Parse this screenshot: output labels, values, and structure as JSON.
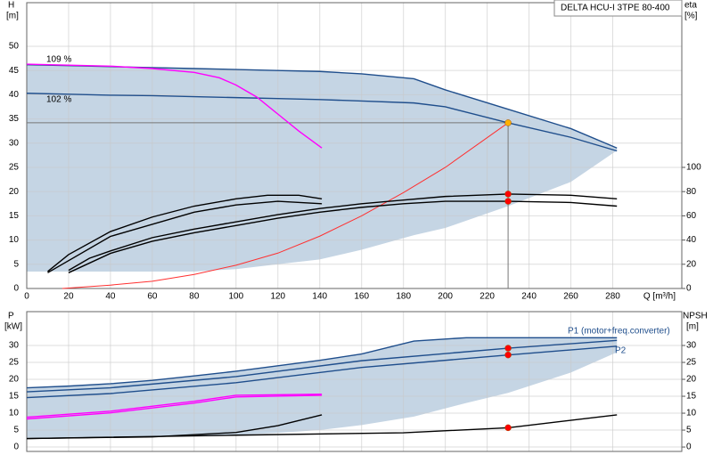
{
  "chart_data": [
    {
      "type": "line",
      "title": "DELTA HCU-I 3TPE 80-400",
      "xlabel": "Q [m³/h]",
      "ylabel": "H",
      "yunit": "[m]",
      "y2label": "eta",
      "y2unit": "[%]",
      "xlim": [
        0,
        313
      ],
      "xticks": [
        0,
        20,
        40,
        60,
        80,
        100,
        120,
        140,
        160,
        180,
        200,
        220,
        240,
        260,
        280
      ],
      "ylim": [
        0,
        59
      ],
      "yticks": [
        0,
        5,
        10,
        15,
        20,
        25,
        30,
        35,
        40,
        45,
        50
      ],
      "y2lim": [
        0,
        236
      ],
      "y2ticks": [
        0,
        20,
        40,
        60,
        80,
        100
      ],
      "grid": true,
      "envelope": {
        "color": "#c5d5e4",
        "x": [
          0,
          20,
          40,
          60,
          80,
          100,
          120,
          140,
          160,
          185,
          200,
          230,
          260,
          282
        ],
        "upper": [
          46.2,
          46,
          45.8,
          45.6,
          45.4,
          45.2,
          45,
          44.8,
          44.3,
          43.3,
          41,
          37,
          33,
          29
        ],
        "lower": [
          3.5,
          3.5,
          3.5,
          3.5,
          3.5,
          4,
          5,
          6,
          8,
          11,
          12.5,
          17,
          22,
          28.5
        ]
      },
      "series": [
        {
          "name": "109 %",
          "color": "#1f4e8c",
          "x": [
            0,
            20,
            40,
            60,
            80,
            100,
            120,
            140,
            160,
            185,
            200,
            230,
            260,
            282
          ],
          "values": [
            46.2,
            46,
            45.8,
            45.6,
            45.4,
            45.2,
            45,
            44.8,
            44.3,
            43.3,
            41,
            37,
            33,
            29
          ]
        },
        {
          "name": "102 %",
          "color": "#1f4e8c",
          "x": [
            0,
            20,
            40,
            60,
            80,
            100,
            120,
            140,
            160,
            185,
            200,
            230,
            260,
            282
          ],
          "values": [
            40.3,
            40.1,
            39.9,
            39.8,
            39.6,
            39.4,
            39.2,
            39,
            38.7,
            38.3,
            37.5,
            34.2,
            31.2,
            28.4
          ]
        },
        {
          "color": "#ff00ff",
          "x": [
            0,
            20,
            40,
            60,
            80,
            92,
            100,
            110,
            120,
            130,
            141
          ],
          "values": [
            46.3,
            46.1,
            45.9,
            45.4,
            44.6,
            43.5,
            42,
            39.5,
            36,
            32.5,
            29
          ]
        },
        {
          "color": "#ff3030",
          "x": [
            17,
            40,
            60,
            80,
            100,
            120,
            140,
            160,
            180,
            200,
            230
          ],
          "values": [
            0,
            0.7,
            1.5,
            2.9,
            4.8,
            7.3,
            10.8,
            15,
            19.8,
            25,
            34.2
          ]
        },
        {
          "color": "#000000",
          "axis": "y2",
          "x": [
            20,
            30,
            40,
            60,
            80,
            100,
            120,
            140,
            160,
            180,
            200,
            230,
            260,
            282
          ],
          "values": [
            15,
            25,
            31,
            42,
            49,
            55,
            61,
            66,
            70,
            73,
            76,
            78,
            77,
            74
          ]
        },
        {
          "color": "#000000",
          "axis": "y2",
          "x": [
            20,
            40,
            60,
            80,
            100,
            120,
            140,
            160,
            180,
            200,
            230,
            260,
            282
          ],
          "values": [
            13,
            29,
            39,
            46,
            52,
            58,
            63,
            67,
            70,
            72,
            72,
            71,
            68
          ]
        },
        {
          "color": "#000000",
          "axis": "y2",
          "x": [
            10,
            20,
            40,
            60,
            80,
            100,
            115,
            130,
            141
          ],
          "values": [
            14,
            28,
            47,
            59,
            68,
            74,
            77,
            77,
            74
          ]
        },
        {
          "color": "#000000",
          "axis": "y2",
          "x": [
            10,
            40,
            80,
            100,
            120,
            141
          ],
          "values": [
            13,
            43,
            63,
            69,
            72,
            70
          ]
        }
      ],
      "points": [
        {
          "x": 230,
          "y": 34.2,
          "color": "#ffb000"
        },
        {
          "x": 230,
          "y": 78,
          "axis": "y2",
          "color": "#ff0000"
        },
        {
          "x": 230,
          "y": 72,
          "axis": "y2",
          "color": "#ff0000"
        }
      ]
    },
    {
      "type": "line",
      "ylabel": "P",
      "yunit": "[kW]",
      "y2label": "NPSH",
      "y2unit": "[m]",
      "xlim": [
        0,
        313
      ],
      "ylim": [
        -1.3,
        40
      ],
      "yticks": [
        0,
        5,
        10,
        15,
        20,
        25,
        30
      ],
      "y2lim": [
        -1.3,
        40
      ],
      "y2ticks": [
        0,
        5,
        10,
        15,
        20,
        25,
        30
      ],
      "grid": true,
      "annotations": [
        "P1 (motor+freq.converter)",
        "P2"
      ],
      "envelope": {
        "color": "#c5d5e4",
        "x": [
          0,
          20,
          40,
          60,
          80,
          100,
          120,
          140,
          160,
          185,
          210,
          230,
          260,
          282
        ],
        "upper": [
          17.5,
          18,
          18.7,
          19.7,
          21,
          22.4,
          24,
          25.6,
          27.5,
          31.3,
          32.3,
          32.3,
          32.3,
          32.3
        ],
        "lower": [
          2.7,
          2.7,
          2.8,
          3,
          3.2,
          3.6,
          4.2,
          5,
          6.5,
          9,
          13,
          16,
          22,
          28
        ]
      },
      "series": [
        {
          "color": "#1f4e8c",
          "x": [
            0,
            20,
            40,
            60,
            80,
            100,
            120,
            140,
            160,
            185,
            210,
            230,
            260,
            282
          ],
          "values": [
            17.5,
            18,
            18.7,
            19.7,
            21,
            22.4,
            24,
            25.6,
            27.5,
            31.3,
            32.3,
            32.3,
            32.3,
            32.3
          ]
        },
        {
          "color": "#1f4e8c",
          "x": [
            0,
            40,
            100,
            160,
            230,
            282
          ],
          "values": [
            16.3,
            17.5,
            20.8,
            25.5,
            29.2,
            31.5
          ]
        },
        {
          "color": "#1f4e8c",
          "x": [
            0,
            40,
            100,
            160,
            230,
            282
          ],
          "values": [
            14.6,
            15.8,
            19,
            23.5,
            27.2,
            29.8
          ]
        },
        {
          "color": "#ff00ff",
          "x": [
            0,
            40,
            80,
            100,
            141
          ],
          "values": [
            8.8,
            10.6,
            13.5,
            15.3,
            15.6
          ]
        },
        {
          "color": "#ff00ff",
          "x": [
            0,
            40,
            80,
            100,
            141
          ],
          "values": [
            8.3,
            10.1,
            13,
            14.8,
            15.3
          ]
        },
        {
          "color": "#000000",
          "x": [
            0,
            60,
            100,
            120,
            141
          ],
          "values": [
            2.5,
            3,
            4.3,
            6.3,
            9.5
          ]
        },
        {
          "color": "#000000",
          "axis": "y2",
          "x": [
            0,
            100,
            180,
            230,
            282
          ],
          "values": [
            2.5,
            3.5,
            4.2,
            5.7,
            9.5
          ]
        }
      ],
      "points": [
        {
          "x": 230,
          "y": 29.2,
          "color": "#ff0000"
        },
        {
          "x": 230,
          "y": 27.2,
          "color": "#ff0000"
        },
        {
          "x": 230,
          "y": 5.7,
          "axis": "y2",
          "color": "#ff0000"
        }
      ]
    }
  ]
}
